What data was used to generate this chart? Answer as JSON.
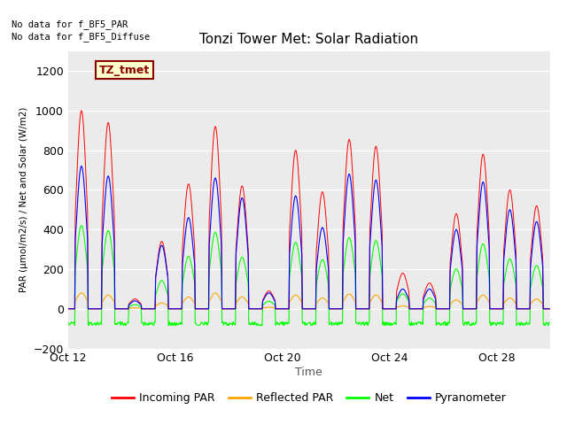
{
  "title": "Tonzi Tower Met: Solar Radiation",
  "ylabel": "PAR (μmol/m2/s) / Net and Solar (W/m2)",
  "xlabel": "Time",
  "ylim": [
    -200,
    1300
  ],
  "yticks": [
    -200,
    0,
    200,
    400,
    600,
    800,
    1000,
    1200
  ],
  "plot_bg_color": "#ebebeb",
  "no_data_text1": "No data for f_BF5_PAR",
  "no_data_text2": "No data for f_BF5_Diffuse",
  "legend_label_text": "TZ_tmet",
  "legend_entries": [
    "Incoming PAR",
    "Reflected PAR",
    "Net",
    "Pyranometer"
  ],
  "line_colors": [
    "red",
    "orange",
    "lime",
    "blue"
  ],
  "xtick_days": [
    12,
    16,
    20,
    24,
    28
  ],
  "month": "Oct",
  "par_peaks": [
    1000,
    940,
    50,
    340,
    630,
    920,
    620,
    90,
    800,
    590,
    855,
    820,
    180,
    130,
    480,
    780,
    600,
    520
  ],
  "pyr_peaks": [
    720,
    670,
    40,
    320,
    460,
    660,
    560,
    80,
    570,
    410,
    680,
    650,
    100,
    100,
    400,
    640,
    500,
    440
  ],
  "refl_peaks": [
    80,
    70,
    5,
    30,
    60,
    80,
    60,
    8,
    70,
    55,
    75,
    70,
    15,
    12,
    45,
    70,
    55,
    50
  ],
  "net_night": -70,
  "net_day_ratio": 0.42
}
